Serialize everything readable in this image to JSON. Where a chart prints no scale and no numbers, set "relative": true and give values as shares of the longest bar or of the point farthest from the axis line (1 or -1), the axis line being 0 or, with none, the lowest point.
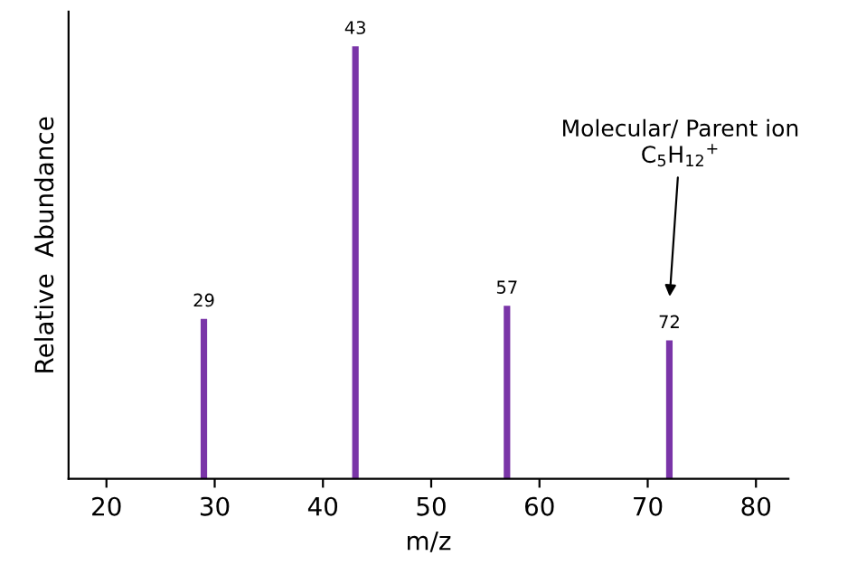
{
  "chart_data": {
    "type": "bar",
    "xlabel": "m/z",
    "ylabel": "Relative  Abundance",
    "relative": true,
    "x": [
      29,
      43,
      57,
      72
    ],
    "values": [
      0.37,
      1,
      0.4,
      0.32
    ],
    "color": "#7a35a8",
    "xlim": [
      16.5,
      83
    ],
    "xticks": [
      20,
      30,
      40,
      50,
      60,
      70,
      80
    ],
    "grid": false,
    "legend": false,
    "annotations": [
      {
        "text": "29",
        "x": 29,
        "y": 0.37
      },
      {
        "text": "43",
        "x": 43,
        "y": 1
      },
      {
        "text": "57",
        "x": 57,
        "y": 0.4
      },
      {
        "text": "72",
        "x": 72,
        "y": 0.32
      },
      "Molecular/ Parent ion\nC$_{5}$H$_{12}$$^{+}$"
    ]
  }
}
